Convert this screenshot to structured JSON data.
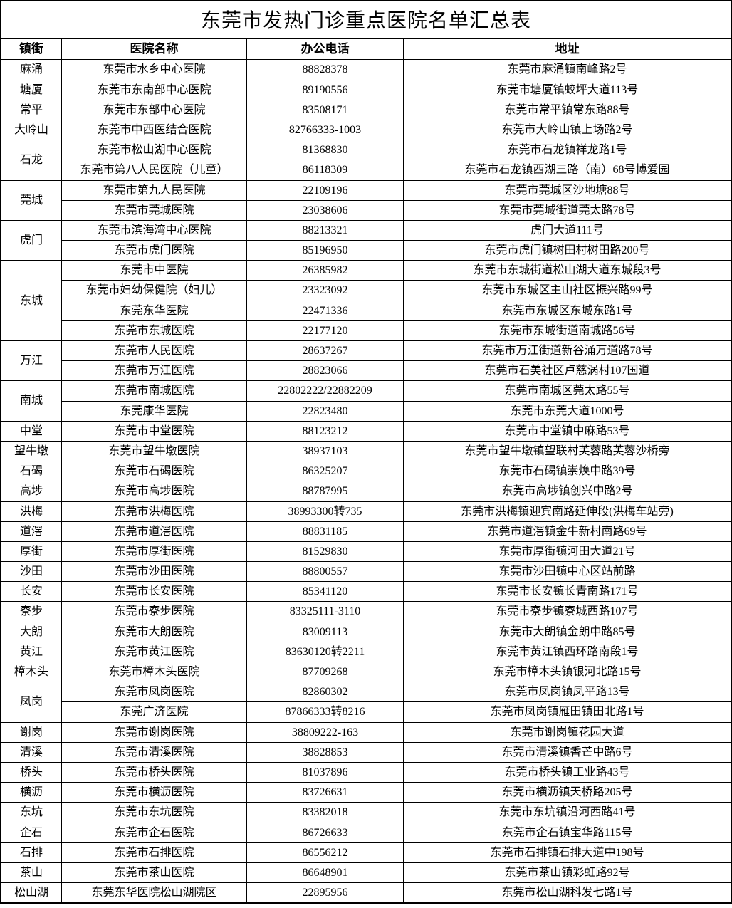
{
  "title": "东莞市发热门诊重点医院名单汇总表",
  "headers": {
    "town": "镇街",
    "hospital": "医院名称",
    "phone": "办公电话",
    "address": "地址"
  },
  "groups": [
    {
      "town": "麻涌",
      "rows": [
        {
          "hospital": "东莞市水乡中心医院",
          "phone": "88828378",
          "address": "东莞市麻涌镇南峰路2号"
        }
      ]
    },
    {
      "town": "塘厦",
      "rows": [
        {
          "hospital": "东莞市东南部中心医院",
          "phone": "89190556",
          "address": "东莞市塘厦镇蛟坪大道113号"
        }
      ]
    },
    {
      "town": "常平",
      "rows": [
        {
          "hospital": "东莞市东部中心医院",
          "phone": "83508171",
          "address": "东莞市常平镇常东路88号"
        }
      ]
    },
    {
      "town": "大岭山",
      "rows": [
        {
          "hospital": "东莞市中西医结合医院",
          "phone": "82766333-1003",
          "address": "东莞市大岭山镇上场路2号"
        }
      ]
    },
    {
      "town": "石龙",
      "rows": [
        {
          "hospital": "东莞市松山湖中心医院",
          "phone": "81368830",
          "address": "东莞市石龙镇祥龙路1号"
        },
        {
          "hospital": "东莞市第八人民医院（儿童）",
          "phone": "86118309",
          "address": "东莞市石龙镇西湖三路（南）68号博爱园"
        }
      ]
    },
    {
      "town": "莞城",
      "rows": [
        {
          "hospital": "东莞市第九人民医院",
          "phone": "22109196",
          "address": "东莞市莞城区沙地塘88号"
        },
        {
          "hospital": "东莞市莞城医院",
          "phone": "23038606",
          "address": "东莞市莞城街道莞太路78号"
        }
      ]
    },
    {
      "town": "虎门",
      "rows": [
        {
          "hospital": "东莞市滨海湾中心医院",
          "phone": "88213321",
          "address": "虎门大道111号"
        },
        {
          "hospital": "东莞市虎门医院",
          "phone": "85196950",
          "address": "东莞市虎门镇树田村树田路200号"
        }
      ]
    },
    {
      "town": "东城",
      "rows": [
        {
          "hospital": "东莞市中医院",
          "phone": "26385982",
          "address": "东莞市东城街道松山湖大道东城段3号"
        },
        {
          "hospital": "东莞市妇幼保健院（妇儿）",
          "phone": "23323092",
          "address": "东莞市东城区主山社区振兴路99号"
        },
        {
          "hospital": "东莞东华医院",
          "phone": "22471336",
          "address": "东莞市东城区东城东路1号"
        },
        {
          "hospital": "东莞市东城医院",
          "phone": "22177120",
          "address": "东莞市东城街道南城路56号"
        }
      ]
    },
    {
      "town": "万江",
      "rows": [
        {
          "hospital": "东莞市人民医院",
          "phone": "28637267",
          "address": "东莞市万江街道新谷涌万道路78号"
        },
        {
          "hospital": "东莞市万江医院",
          "phone": "28823066",
          "address": "东莞市石美社区卢慈涡村107国道"
        }
      ]
    },
    {
      "town": "南城",
      "rows": [
        {
          "hospital": "东莞市南城医院",
          "phone": "22802222/22882209",
          "address": "东莞市南城区莞太路55号"
        },
        {
          "hospital": "东莞康华医院",
          "phone": "22823480",
          "address": "东莞市东莞大道1000号"
        }
      ]
    },
    {
      "town": "中堂",
      "rows": [
        {
          "hospital": "东莞市中堂医院",
          "phone": "88123212",
          "address": "东莞市中堂镇中麻路53号"
        }
      ]
    },
    {
      "town": "望牛墩",
      "rows": [
        {
          "hospital": "东莞市望牛墩医院",
          "phone": "38937103",
          "address": "东莞市望牛墩镇望联村芙蓉路芙蓉沙桥旁"
        }
      ]
    },
    {
      "town": "石碣",
      "rows": [
        {
          "hospital": "东莞市石碣医院",
          "phone": "86325207",
          "address": "东莞市石碣镇崇焕中路39号"
        }
      ]
    },
    {
      "town": "高埗",
      "rows": [
        {
          "hospital": "东莞市高埗医院",
          "phone": "88787995",
          "address": "东莞市高埗镇创兴中路2号"
        }
      ]
    },
    {
      "town": "洪梅",
      "rows": [
        {
          "hospital": "东莞市洪梅医院",
          "phone": "38993300转735",
          "address": "东莞市洪梅镇迎宾南路延伸段(洪梅车站旁)"
        }
      ]
    },
    {
      "town": "道滘",
      "rows": [
        {
          "hospital": "东莞市道滘医院",
          "phone": "88831185",
          "address": "东莞市道滘镇金牛新村南路69号"
        }
      ]
    },
    {
      "town": "厚街",
      "rows": [
        {
          "hospital": "东莞市厚街医院",
          "phone": "81529830",
          "address": "东莞市厚街镇河田大道21号"
        }
      ]
    },
    {
      "town": "沙田",
      "rows": [
        {
          "hospital": "东莞市沙田医院",
          "phone": "88800557",
          "address": "东莞市沙田镇中心区站前路"
        }
      ]
    },
    {
      "town": "长安",
      "rows": [
        {
          "hospital": "东莞市长安医院",
          "phone": "85341120",
          "address": "东莞市长安镇长青南路171号"
        }
      ]
    },
    {
      "town": "寮步",
      "rows": [
        {
          "hospital": "东莞市寮步医院",
          "phone": "83325111-3110",
          "address": "东莞市寮步镇寮城西路107号"
        }
      ]
    },
    {
      "town": "大朗",
      "rows": [
        {
          "hospital": "东莞市大朗医院",
          "phone": "83009113",
          "address": "东莞市大朗镇金朗中路85号"
        }
      ]
    },
    {
      "town": "黄江",
      "rows": [
        {
          "hospital": "东莞市黄江医院",
          "phone": "83630120转2211",
          "address": "东莞市黄江镇西环路南段1号"
        }
      ]
    },
    {
      "town": "樟木头",
      "rows": [
        {
          "hospital": "东莞市樟木头医院",
          "phone": "87709268",
          "address": "东莞市樟木头镇银河北路15号"
        }
      ]
    },
    {
      "town": "凤岗",
      "rows": [
        {
          "hospital": "东莞市凤岗医院",
          "phone": "82860302",
          "address": "东莞市凤岗镇凤平路13号"
        },
        {
          "hospital": "东莞广济医院",
          "phone": "87866333转8216",
          "address": "东莞市凤岗镇雁田镇田北路1号"
        }
      ]
    },
    {
      "town": "谢岗",
      "rows": [
        {
          "hospital": "东莞市谢岗医院",
          "phone": "38809222-163",
          "address": "东莞市谢岗镇花园大道"
        }
      ]
    },
    {
      "town": "清溪",
      "rows": [
        {
          "hospital": "东莞市清溪医院",
          "phone": "38828853",
          "address": "东莞市清溪镇香芒中路6号"
        }
      ]
    },
    {
      "town": "桥头",
      "rows": [
        {
          "hospital": "东莞市桥头医院",
          "phone": "81037896",
          "address": "东莞市桥头镇工业路43号"
        }
      ]
    },
    {
      "town": "横沥",
      "rows": [
        {
          "hospital": "东莞市横沥医院",
          "phone": "83726631",
          "address": "东莞市横沥镇天桥路205号"
        }
      ]
    },
    {
      "town": "东坑",
      "rows": [
        {
          "hospital": "东莞市东坑医院",
          "phone": "83382018",
          "address": "东莞市东坑镇沿河西路41号"
        }
      ]
    },
    {
      "town": "企石",
      "rows": [
        {
          "hospital": "东莞市企石医院",
          "phone": "86726633",
          "address": "东莞市企石镇宝华路115号"
        }
      ]
    },
    {
      "town": "石排",
      "rows": [
        {
          "hospital": "东莞市石排医院",
          "phone": "86556212",
          "address": "东莞市石排镇石排大道中198号"
        }
      ]
    },
    {
      "town": "茶山",
      "rows": [
        {
          "hospital": "东莞市茶山医院",
          "phone": "86648901",
          "address": "东莞市茶山镇彩虹路92号"
        }
      ]
    },
    {
      "town": "松山湖",
      "rows": [
        {
          "hospital": "东莞东华医院松山湖院区",
          "phone": "22895956",
          "address": "东莞市松山湖科发七路1号"
        }
      ]
    }
  ]
}
